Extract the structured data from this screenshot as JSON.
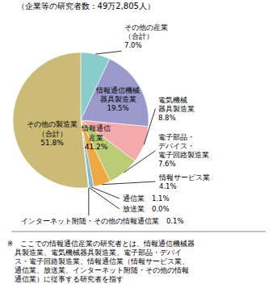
{
  "chart_data": {
    "type": "pie",
    "title": "（企業等の研究者数：49万2,805人）",
    "values": [
      7.0,
      19.5,
      8.8,
      7.6,
      4.1,
      1.1,
      0.05,
      0.1,
      51.85
    ],
    "value_labels": [
      "その他の産業\n（合計）\n7.0%",
      "情報通信機械\n器具製造業\n19.5%",
      "電気機械\n器具製造業\n8.8%",
      "電子部品・\nデバイス・\n電子回路製造業\n7.6%",
      "情報サービス業\n4.1%",
      "通信業　1.1%",
      "放送業　0.0%",
      "インターネット附随・その他の情報通信業　0.1%",
      null
    ],
    "colors": [
      "#88CCCC",
      "#9999CC",
      "#F4AAAA",
      "#BBCC77",
      "#F0A840",
      "#77BBDD",
      "#AAAAAA",
      "#DDDDDD",
      "#CCBB77"
    ],
    "annotations": [
      "情報通信\n産業\n41.2%",
      "その他の製造業\n（合計）\n51.8%"
    ],
    "footnote": [
      "※　ここでの情報通信産業の研究者とは、情報通信機械器",
      "　具製造業、電気機械器具製造業、電子部品・デバイ",
      "　ス・電子回路製造業、情報通信業（情報サービス業、",
      "　通信業、放送業、インターネット附随・その他の情報",
      "　通信業）に従事する研究者を指す"
    ]
  }
}
